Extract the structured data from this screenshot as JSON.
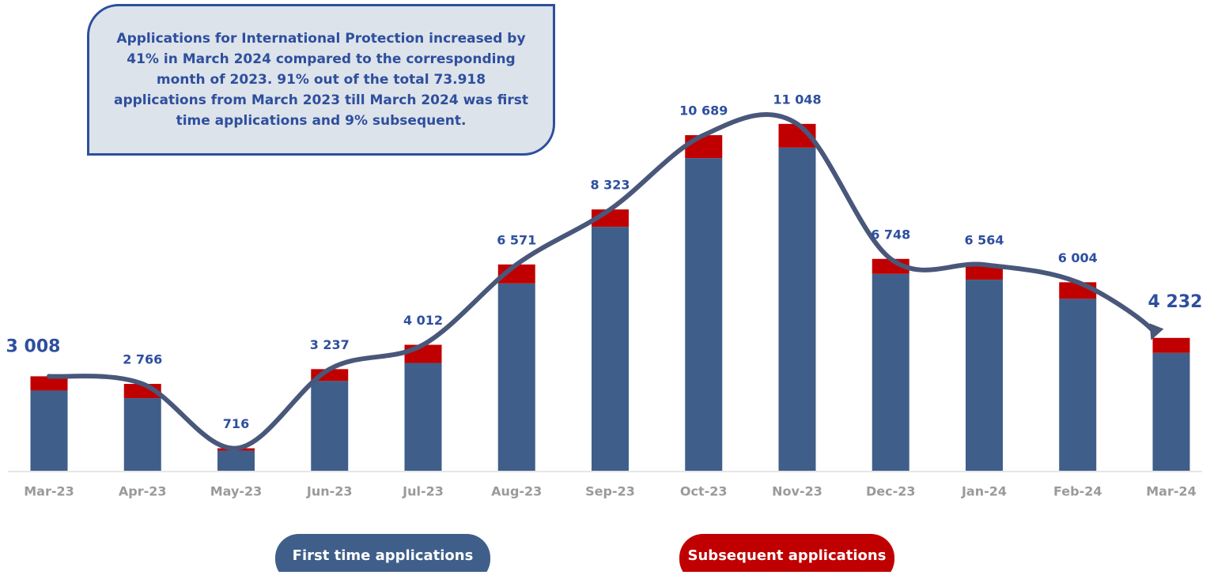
{
  "chart_data": {
    "type": "bar",
    "annotation": "Applications for International Protection increased by 41% in March 2024 compared to the corresponding month of 2023. 91% out of the total 73.918 applications from March 2023 till March 2024 was first time applications and 9% subsequent.",
    "categories": [
      "Mar-23",
      "Apr-23",
      "May-23",
      "Jun-23",
      "Jul-23",
      "Aug-23",
      "Sep-23",
      "Oct-23",
      "Nov-23",
      "Dec-23",
      "Jan-24",
      "Feb-24",
      "Mar-24"
    ],
    "stacked": true,
    "series": [
      {
        "name": "First time applications",
        "color": "#3f5f8a",
        "values": [
          2555,
          2313,
          640,
          2859,
          3433,
          5967,
          7769,
          9959,
          10293,
          6270,
          6086,
          5475,
          3754
        ]
      },
      {
        "name": "Subsequent applications",
        "color": "#c00000",
        "values": [
          453,
          453,
          76,
          378,
          579,
          604,
          554,
          730,
          755,
          478,
          478,
          529,
          478
        ]
      }
    ],
    "totals": {
      "color": "#48577a",
      "values": [
        3008,
        2766,
        716,
        3237,
        4012,
        6571,
        8323,
        10689,
        11048,
        6748,
        6564,
        6004,
        4232
      ],
      "value_labels": [
        "3 008",
        "2 766",
        "716",
        "3 237",
        "4 012",
        "6 571",
        "8 323",
        "10 689",
        "11 048",
        "6 748",
        "6 564",
        "6 004",
        "4 232"
      ]
    }
  }
}
